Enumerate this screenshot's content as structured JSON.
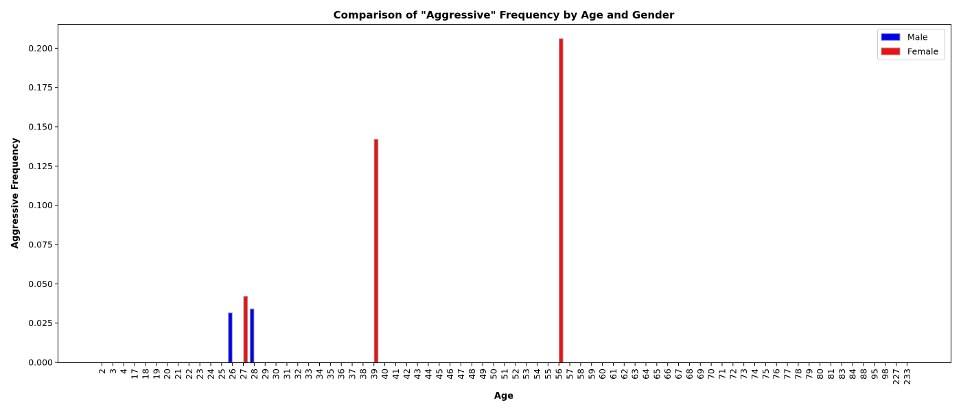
{
  "chart_data": {
    "type": "bar",
    "title": "Comparison of \"Aggressive\" Frequency by Age and Gender",
    "xlabel": "Age",
    "ylabel": "Aggressive Frequency",
    "ylim": [
      0,
      0.215
    ],
    "yticks": [
      0.0,
      0.025,
      0.05,
      0.075,
      0.1,
      0.125,
      0.15,
      0.175,
      0.2
    ],
    "ytick_labels": [
      "0.000",
      "0.025",
      "0.050",
      "0.075",
      "0.100",
      "0.125",
      "0.150",
      "0.175",
      "0.200"
    ],
    "grid": false,
    "legend_position": "top-right",
    "categories": [
      "2",
      "3",
      "4",
      "17",
      "18",
      "19",
      "20",
      "21",
      "22",
      "23",
      "24",
      "25",
      "26",
      "27",
      "28",
      "29",
      "30",
      "31",
      "32",
      "33",
      "34",
      "35",
      "36",
      "37",
      "38",
      "39",
      "40",
      "41",
      "42",
      "43",
      "44",
      "45",
      "46",
      "47",
      "48",
      "49",
      "50",
      "51",
      "52",
      "53",
      "54",
      "55",
      "56",
      "57",
      "58",
      "59",
      "60",
      "61",
      "62",
      "63",
      "64",
      "65",
      "66",
      "67",
      "68",
      "69",
      "70",
      "71",
      "72",
      "73",
      "74",
      "75",
      "76",
      "77",
      "78",
      "79",
      "80",
      "81",
      "83",
      "84",
      "88",
      "95",
      "98",
      "227",
      "233"
    ],
    "series": [
      {
        "name": "Male",
        "color": "#0000ee",
        "values": [
          0,
          0,
          0,
          0,
          0,
          0,
          0,
          0,
          0,
          0,
          0,
          0,
          0.0315,
          0,
          0.034,
          0,
          0,
          0,
          0,
          0,
          0,
          0,
          0,
          0,
          0,
          0,
          0,
          0,
          0,
          0,
          0,
          0,
          0,
          0,
          0,
          0,
          0,
          0,
          0,
          0,
          0,
          0,
          0,
          0,
          0,
          0,
          0,
          0,
          0,
          0,
          0,
          0,
          0,
          0,
          0,
          0,
          0,
          0,
          0,
          0,
          0,
          0,
          0,
          0,
          0,
          0,
          0,
          0,
          0,
          0,
          0,
          0,
          0,
          0,
          0
        ]
      },
      {
        "name": "Female",
        "color": "#ee1111",
        "values": [
          0,
          0,
          0,
          0,
          0,
          0,
          0,
          0,
          0,
          0,
          0,
          0,
          0,
          0.042,
          0,
          0,
          0,
          0,
          0,
          0,
          0,
          0,
          0,
          0,
          0,
          0.142,
          0,
          0,
          0,
          0,
          0,
          0,
          0,
          0,
          0,
          0,
          0,
          0,
          0,
          0,
          0,
          0,
          0.206,
          0,
          0,
          0,
          0,
          0,
          0,
          0,
          0,
          0,
          0,
          0,
          0,
          0,
          0,
          0,
          0,
          0,
          0,
          0,
          0,
          0,
          0,
          0,
          0,
          0,
          0,
          0,
          0,
          0,
          0,
          0,
          0
        ]
      }
    ]
  }
}
